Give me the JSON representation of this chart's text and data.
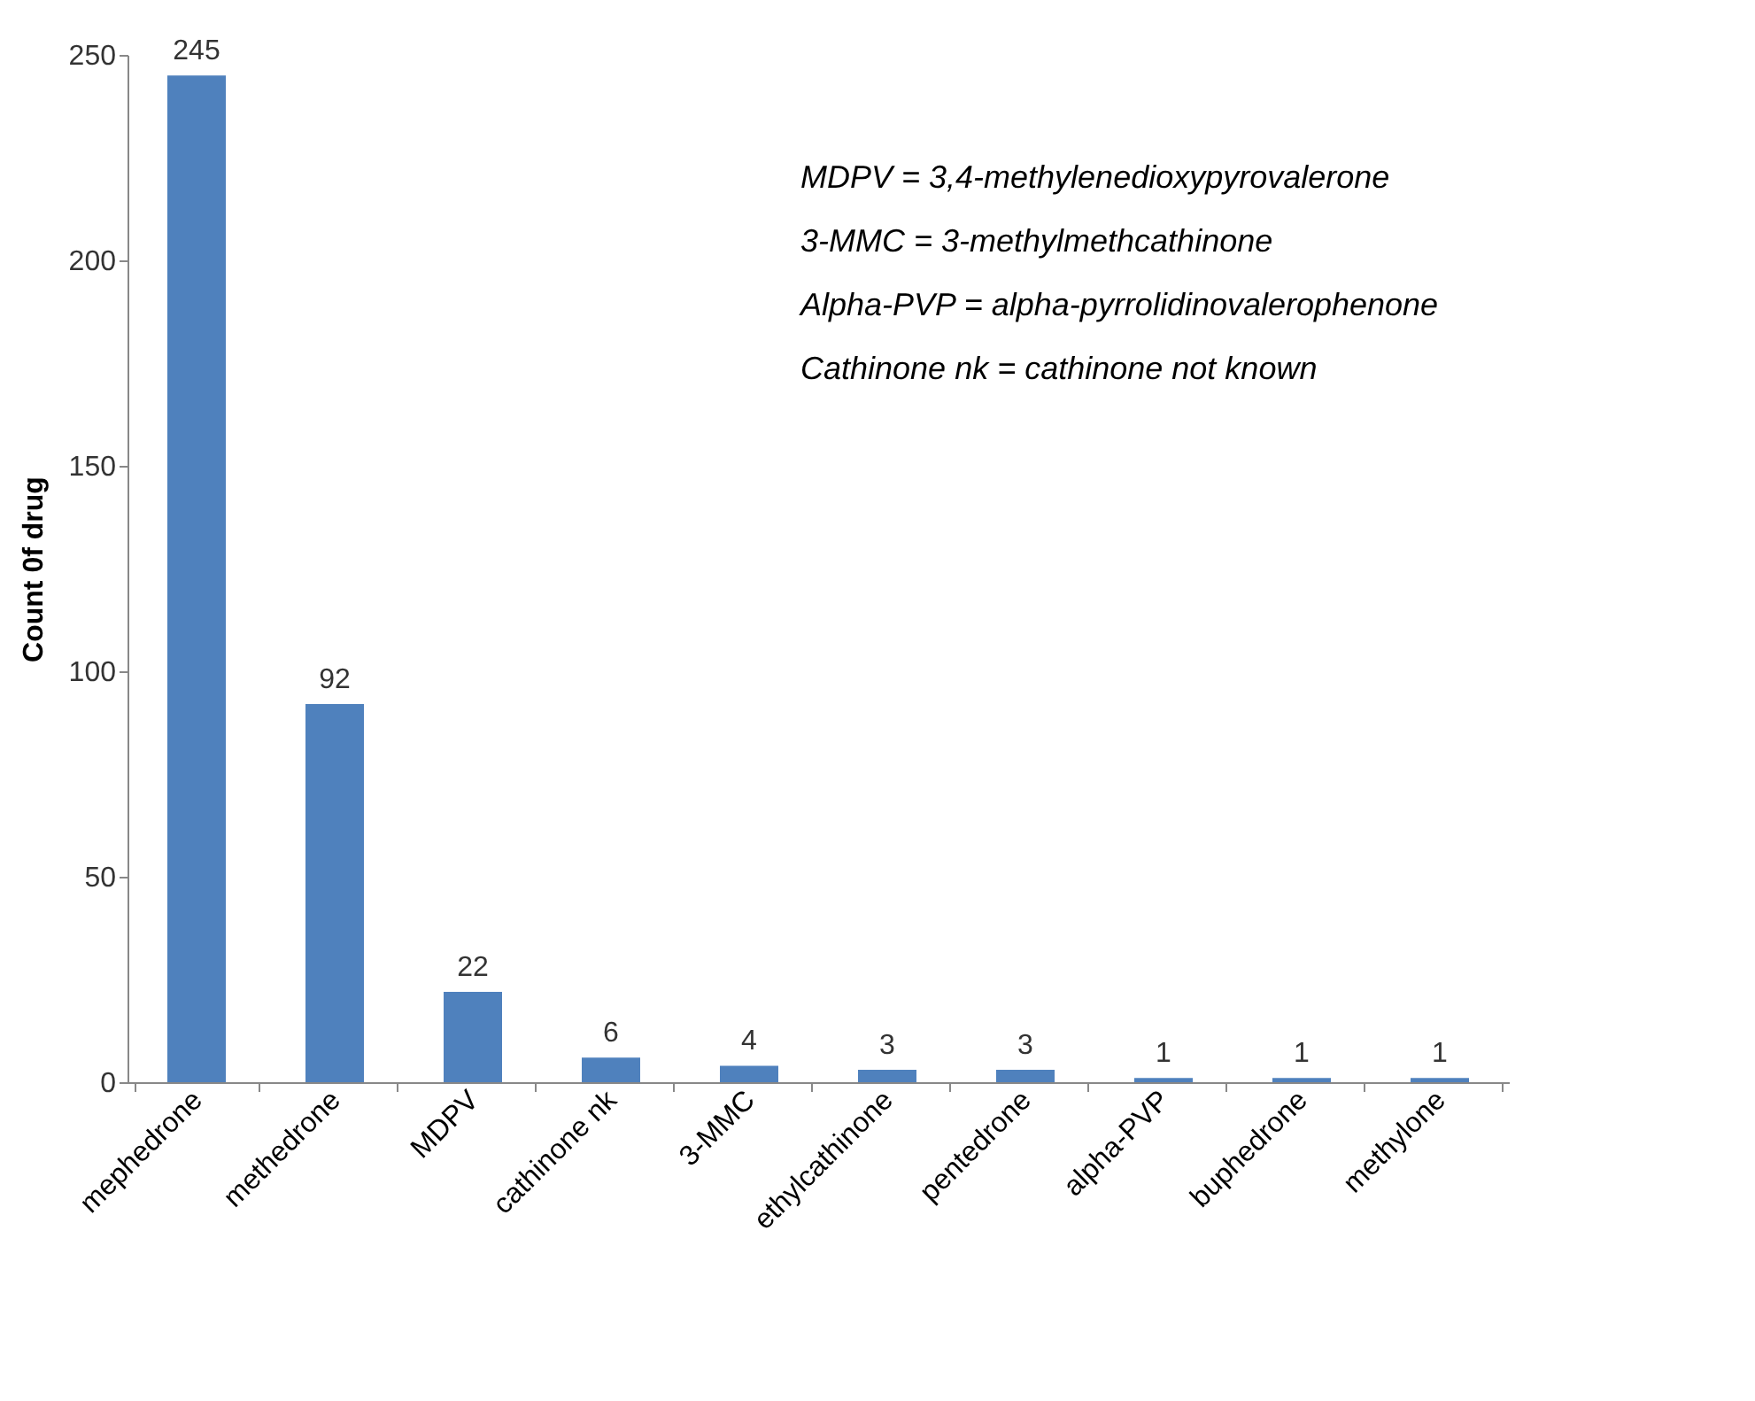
{
  "chart_data": {
    "type": "bar",
    "ylabel": "Count 0f drug",
    "categories": [
      "mephedrone",
      "methedrone",
      "MDPV",
      "cathinone nk",
      "3-MMC",
      "ethylcathinone",
      "pentedrone",
      "alpha-PVP",
      "buphedrone",
      "methylone"
    ],
    "values": [
      245,
      92,
      22,
      6,
      4,
      3,
      3,
      1,
      1,
      1
    ],
    "color": "#4f81bd",
    "ylim": [
      0,
      250
    ],
    "yticks": [
      0,
      50,
      100,
      150,
      200,
      250
    ],
    "data_labels": true,
    "annotations": [
      "MDPV = 3,4-methylenedioxypyrovalerone",
      "3-MMC = 3-methylmethcathinone",
      "Alpha-PVP = alpha-pyrrolidinovalerophenone",
      "Cathinone nk = cathinone not known"
    ]
  }
}
